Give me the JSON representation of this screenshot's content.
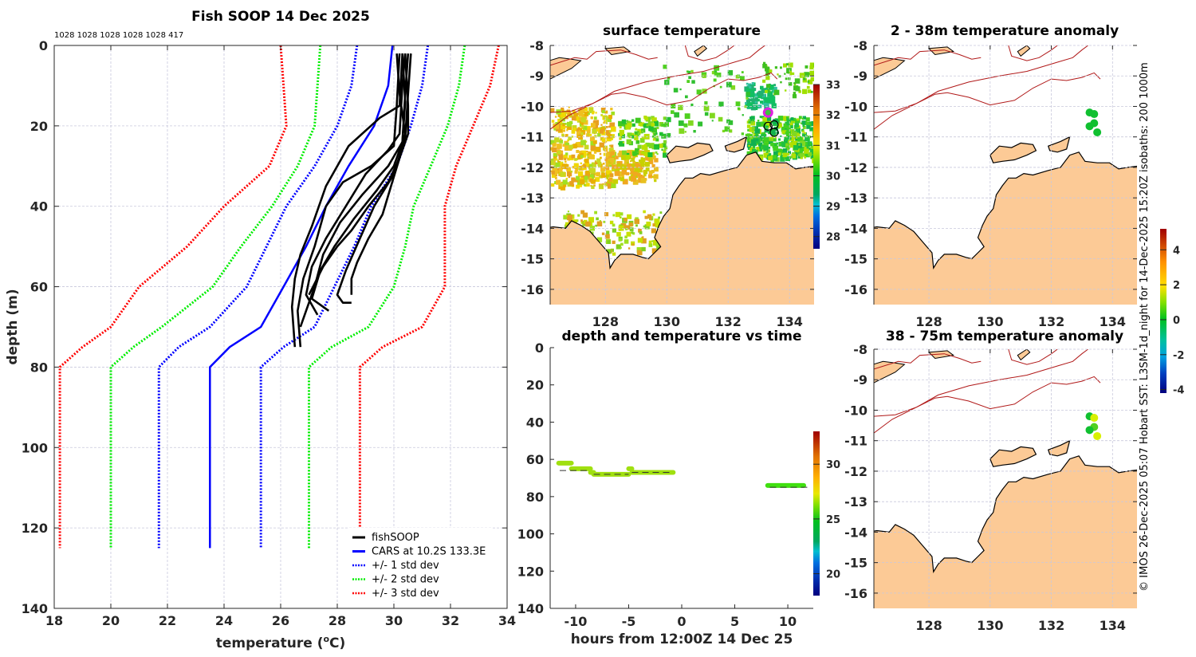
{
  "chart_data": [
    {
      "id": "profile",
      "type": "line",
      "title": "Fish SOOP 14 Dec 2025",
      "annotation": "1028 1028 1028 1028 1028 417",
      "xlabel": "temperature (°C)",
      "xlabel_main": "temperature (",
      "xlabel_sup": "o",
      "xlabel_end": "C)",
      "ylabel": "depth (m)",
      "xlim": [
        18,
        34
      ],
      "ylim": [
        0,
        140
      ],
      "y_reversed": true,
      "xticks": [
        18,
        20,
        22,
        24,
        26,
        28,
        30,
        32,
        34
      ],
      "yticks": [
        0,
        20,
        40,
        60,
        80,
        100,
        120,
        140
      ],
      "grid": true,
      "legend_position": "bottom-right",
      "legend": [
        {
          "label": "fishSOOP",
          "color": "#000000",
          "style": "solid"
        },
        {
          "label": "CARS at 10.2S 133.3E",
          "color": "#0000ff",
          "style": "solid"
        },
        {
          "label": "+/- 1 std dev",
          "color": "#0000ff",
          "style": "dotted"
        },
        {
          "label": "+/- 2 std dev",
          "color": "#00ee00",
          "style": "dotted"
        },
        {
          "label": "+/- 3 std dev",
          "color": "#ff0000",
          "style": "dotted"
        }
      ],
      "cars_mean": {
        "name": "CARS at 10.2S 133.3E",
        "color": "#0000ff",
        "points": [
          [
            29.95,
            0
          ],
          [
            29.8,
            10
          ],
          [
            29.3,
            20
          ],
          [
            28.4,
            30
          ],
          [
            27.6,
            40
          ],
          [
            26.9,
            50
          ],
          [
            26.1,
            60
          ],
          [
            25.3,
            70
          ],
          [
            24.2,
            75
          ],
          [
            23.5,
            80
          ],
          [
            23.5,
            125
          ]
        ]
      },
      "std_curves": [
        {
          "name": "-1 std",
          "color": "#0000ff",
          "points": [
            [
              28.7,
              0
            ],
            [
              28.5,
              10
            ],
            [
              28.0,
              20
            ],
            [
              27.2,
              30
            ],
            [
              26.2,
              40
            ],
            [
              25.5,
              50
            ],
            [
              24.8,
              60
            ],
            [
              23.5,
              70
            ],
            [
              22.4,
              75
            ],
            [
              21.7,
              80
            ],
            [
              21.7,
              125
            ]
          ]
        },
        {
          "name": "+1 std",
          "color": "#0000ff",
          "points": [
            [
              31.2,
              0
            ],
            [
              31.0,
              10
            ],
            [
              30.6,
              20
            ],
            [
              30.1,
              30
            ],
            [
              29.2,
              40
            ],
            [
              28.6,
              50
            ],
            [
              27.9,
              60
            ],
            [
              27.2,
              70
            ],
            [
              26.1,
              75
            ],
            [
              25.3,
              80
            ],
            [
              25.3,
              125
            ]
          ]
        },
        {
          "name": "-2 std",
          "color": "#00ee00",
          "points": [
            [
              27.4,
              0
            ],
            [
              27.3,
              10
            ],
            [
              27.2,
              20
            ],
            [
              26.6,
              30
            ],
            [
              25.7,
              40
            ],
            [
              24.6,
              50
            ],
            [
              23.6,
              60
            ],
            [
              21.8,
              70
            ],
            [
              20.8,
              75
            ],
            [
              20.0,
              80
            ],
            [
              20.0,
              125
            ]
          ]
        },
        {
          "name": "+2 std",
          "color": "#00ee00",
          "points": [
            [
              32.5,
              0
            ],
            [
              32.3,
              10
            ],
            [
              31.9,
              20
            ],
            [
              31.3,
              30
            ],
            [
              30.7,
              40
            ],
            [
              30.4,
              50
            ],
            [
              30.0,
              60
            ],
            [
              29.1,
              70
            ],
            [
              27.8,
              75
            ],
            [
              27.0,
              80
            ],
            [
              27.0,
              125
            ]
          ]
        },
        {
          "name": "-3 std",
          "color": "#ff0000",
          "points": [
            [
              26.0,
              0
            ],
            [
              26.1,
              10
            ],
            [
              26.2,
              20
            ],
            [
              25.6,
              30
            ],
            [
              24.0,
              40
            ],
            [
              22.7,
              50
            ],
            [
              21.0,
              60
            ],
            [
              20.0,
              70
            ],
            [
              19.0,
              75
            ],
            [
              18.2,
              80
            ],
            [
              18.2,
              125
            ]
          ]
        },
        {
          "name": "+3 std",
          "color": "#ff0000",
          "points": [
            [
              33.7,
              0
            ],
            [
              33.4,
              10
            ],
            [
              32.8,
              20
            ],
            [
              32.2,
              30
            ],
            [
              31.8,
              40
            ],
            [
              31.8,
              50
            ],
            [
              31.8,
              60
            ],
            [
              31.0,
              70
            ],
            [
              29.6,
              75
            ],
            [
              28.8,
              80
            ],
            [
              28.8,
              125
            ]
          ]
        }
      ],
      "fishsoop_profiles": [
        [
          [
            30.3,
            2
          ],
          [
            30.2,
            15
          ],
          [
            29.5,
            18
          ],
          [
            28.4,
            25
          ],
          [
            27.6,
            35
          ],
          [
            27.1,
            45
          ],
          [
            26.7,
            52
          ],
          [
            26.5,
            58
          ],
          [
            26.4,
            65
          ],
          [
            26.5,
            75
          ]
        ],
        [
          [
            30.2,
            2
          ],
          [
            30.1,
            15
          ],
          [
            30.0,
            25
          ],
          [
            29.2,
            30
          ],
          [
            28.2,
            34
          ],
          [
            27.6,
            40
          ],
          [
            27.2,
            50
          ],
          [
            26.8,
            58
          ],
          [
            26.6,
            66
          ],
          [
            26.7,
            75
          ]
        ],
        [
          [
            30.4,
            2
          ],
          [
            30.3,
            10
          ],
          [
            30.2,
            22
          ],
          [
            29.8,
            26
          ],
          [
            29.0,
            32
          ],
          [
            28.3,
            40
          ],
          [
            27.6,
            48
          ],
          [
            27.1,
            55
          ],
          [
            26.9,
            62
          ],
          [
            27.3,
            67
          ]
        ],
        [
          [
            30.5,
            2
          ],
          [
            30.4,
            12
          ],
          [
            30.3,
            24
          ],
          [
            30.0,
            30
          ],
          [
            29.4,
            36
          ],
          [
            28.6,
            43
          ],
          [
            27.9,
            50
          ],
          [
            27.4,
            56
          ],
          [
            27.1,
            63
          ],
          [
            27.7,
            66
          ]
        ],
        [
          [
            30.1,
            2
          ],
          [
            30.2,
            12
          ],
          [
            30.4,
            22
          ],
          [
            30.2,
            28
          ],
          [
            29.8,
            34
          ],
          [
            29.1,
            40
          ],
          [
            28.5,
            46
          ],
          [
            28.0,
            50
          ],
          [
            27.5,
            55
          ],
          [
            27.0,
            62
          ]
        ],
        [
          [
            30.4,
            2
          ],
          [
            30.5,
            15
          ],
          [
            30.5,
            22
          ],
          [
            30.2,
            28
          ],
          [
            29.9,
            35
          ],
          [
            29.6,
            42
          ],
          [
            29.1,
            48
          ],
          [
            28.7,
            54
          ],
          [
            28.5,
            58
          ],
          [
            28.5,
            62
          ]
        ],
        [
          [
            30.6,
            2
          ],
          [
            30.5,
            12
          ],
          [
            30.4,
            23
          ],
          [
            30.0,
            32
          ],
          [
            29.3,
            40
          ],
          [
            28.8,
            48
          ],
          [
            28.3,
            56
          ],
          [
            28.0,
            62
          ],
          [
            28.2,
            64
          ],
          [
            28.5,
            64
          ]
        ],
        [
          [
            30.3,
            2
          ],
          [
            30.4,
            14
          ],
          [
            30.3,
            24
          ],
          [
            29.8,
            30
          ],
          [
            28.9,
            37
          ],
          [
            28.1,
            44
          ],
          [
            27.5,
            52
          ],
          [
            27.2,
            60
          ],
          [
            26.9,
            66
          ],
          [
            26.7,
            70
          ]
        ]
      ]
    },
    {
      "id": "surface-temperature",
      "type": "heatmap",
      "title": "surface temperature",
      "xticks": [
        128,
        130,
        132,
        134
      ],
      "yticks": [
        -8,
        -9,
        -10,
        -11,
        -12,
        -13,
        -14,
        -15,
        -16
      ],
      "xlim": [
        126.2,
        134.8
      ],
      "ylim": [
        -16.5,
        -8
      ],
      "colorbar": {
        "ticks": [
          28,
          29,
          30,
          31,
          32,
          33
        ],
        "range": [
          27.6,
          33
        ]
      },
      "markers": [
        {
          "lon": 133.3,
          "lat": -10.2,
          "style": "magenta ring"
        },
        {
          "lon": 133.3,
          "lat": -10.65,
          "style": "black circle"
        },
        {
          "lon": 133.5,
          "lat": -10.6,
          "style": "black circle"
        },
        {
          "lon": 133.5,
          "lat": -10.85,
          "style": "black circle"
        }
      ]
    },
    {
      "id": "depth-time",
      "type": "scatter",
      "title": "depth and temperature vs time",
      "xlabel": "hours from 12:00Z 14 Dec 25",
      "ylabel": "",
      "xlim": [
        -12.4,
        12.4
      ],
      "ylim": [
        0,
        140
      ],
      "y_reversed": true,
      "xticks": [
        -10,
        -5,
        0,
        5,
        10
      ],
      "yticks": [
        0,
        20,
        40,
        60,
        80,
        100,
        120,
        140
      ],
      "colorbar": {
        "ticks": [
          20,
          25,
          30
        ],
        "range": [
          18,
          33
        ]
      },
      "segments": [
        {
          "x": [
            -11.6,
            -11.5,
            -10.6,
            -10.4
          ],
          "bottom": 62
        },
        {
          "x": [
            -10.4,
            -8.6
          ],
          "bottom": 65
        },
        {
          "x": [
            -8.6,
            -8.3
          ],
          "bottom": 67
        },
        {
          "x": [
            -8.3,
            -5.0
          ],
          "bottom": 68
        },
        {
          "x": [
            -5.0,
            -4.7
          ],
          "bottom": 65
        },
        {
          "x": [
            -4.7,
            -0.8
          ],
          "bottom": 67
        },
        {
          "x": [
            8.1,
            11.5
          ],
          "bottom": 74
        }
      ],
      "casts": [
        {
          "x": -11.4,
          "bottom": 63
        },
        {
          "x": -10.4,
          "bottom": 62
        },
        {
          "x": -8.4,
          "bottom": 67
        },
        {
          "x": -4.9,
          "bottom": 66
        },
        {
          "x": -0.8,
          "bottom": 67
        },
        {
          "x": 8.1,
          "bottom": 74
        },
        {
          "x": 11.3,
          "bottom": 74
        },
        {
          "x": 11.6,
          "bottom": 74
        }
      ],
      "bottom_dashes": [
        {
          "x0": -11.5,
          "x1": -8.6,
          "depth": 66
        },
        {
          "x0": -8.3,
          "x1": -5.0,
          "depth": 68
        },
        {
          "x0": -4.7,
          "x1": -0.8,
          "depth": 67
        },
        {
          "x0": 8.3,
          "x1": 12.0,
          "depth": 75
        }
      ]
    },
    {
      "id": "anomaly-2-38",
      "type": "scatter",
      "title": "2 - 38m temperature anomaly",
      "xticks": [
        128,
        130,
        132,
        134
      ],
      "yticks": [
        -8,
        -9,
        -10,
        -11,
        -12,
        -13,
        -14,
        -15,
        -16
      ],
      "points": [
        {
          "lon": 133.25,
          "lat": -10.2,
          "anomaly": 0
        },
        {
          "lon": 133.4,
          "lat": -10.25,
          "anomaly": 0
        },
        {
          "lon": 133.4,
          "lat": -10.55,
          "anomaly": 0
        },
        {
          "lon": 133.25,
          "lat": -10.65,
          "anomaly": 0
        },
        {
          "lon": 133.5,
          "lat": -10.85,
          "anomaly": 0
        }
      ]
    },
    {
      "id": "anomaly-38-75",
      "type": "scatter",
      "title": "38 - 75m temperature anomaly",
      "xticks": [
        128,
        130,
        132,
        134
      ],
      "yticks": [
        -8,
        -9,
        -10,
        -11,
        -12,
        -13,
        -14,
        -15,
        -16
      ],
      "colorbar": {
        "ticks": [
          -4,
          -2,
          0,
          2,
          4
        ],
        "range": [
          -4.2,
          5.2
        ]
      },
      "points": [
        {
          "lon": 133.25,
          "lat": -10.2,
          "anomaly": 0
        },
        {
          "lon": 133.4,
          "lat": -10.25,
          "anomaly": 1.6
        },
        {
          "lon": 133.4,
          "lat": -10.55,
          "anomaly": 0.5
        },
        {
          "lon": 133.25,
          "lat": -10.65,
          "anomaly": 0
        },
        {
          "lon": 133.5,
          "lat": -10.85,
          "anomaly": 1.8
        }
      ]
    }
  ],
  "credit": "© IMOS 26-Dec-2025 05:07 Hobart SST: L3SM-1d_night for 14-Dec-2025 15:20Z isobaths: 200  1000m"
}
